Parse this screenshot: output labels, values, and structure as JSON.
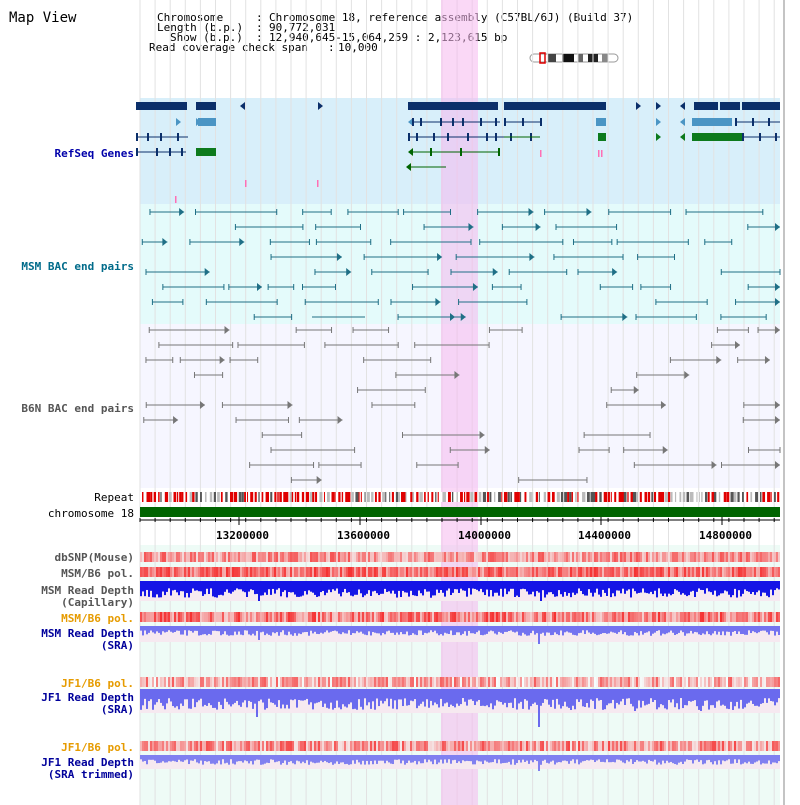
{
  "header": {
    "title": "Map View",
    "chromosome_key": "Chromosome",
    "chromosome_value": "Chromosome 18, reference assembly (C57BL/6J) (Build 37)",
    "length_key": "Length (b.p.)",
    "length_value": "90,772,031",
    "show_key": "Show (b.p.)",
    "show_value": "12,940,645-15,064,259 : 2,123,615 bp",
    "span_key": "Read coverage check span",
    "span_value": "10,000"
  },
  "tracks": {
    "refseq": "RefSeq Genes",
    "msm_bac": "MSM BAC end pairs",
    "b6n_bac": "B6N BAC end pairs",
    "repeat": "Repeat",
    "chromosome": "chromosome 18",
    "dbsnp": "dbSNP(Mouse)",
    "msm_b6_pol_1": "MSM/B6 pol.",
    "msm_depth_cap_1": "MSM Read Depth",
    "msm_depth_cap_2": "(Capillary)",
    "msm_b6_pol_2": "MSM/B6 pol.",
    "msm_depth_sra_1": "MSM Read Depth",
    "msm_depth_sra_2": "(SRA)",
    "jf1_b6_pol_1": "JF1/B6 pol.",
    "jf1_depth_sra_1": "JF1 Read Depth",
    "jf1_depth_sra_2": "(SRA)",
    "jf1_b6_pol_2": "JF1/B6 pol.",
    "jf1_depth_trim_1": "JF1 Read Depth",
    "jf1_depth_trim_2": "(SRA trimmed)"
  },
  "axis": {
    "ticks": [
      "13200000",
      "13600000",
      "14000000",
      "14400000",
      "14800000"
    ]
  },
  "colors": {
    "refseq_label": "#0000aa",
    "msm_label": "#006b8a",
    "b6n_label": "#555555",
    "pol_label": "#e69b00",
    "depth_label": "#00009b",
    "highlight": "#f5c8f0",
    "chromosome_bar": "#006400"
  }
}
